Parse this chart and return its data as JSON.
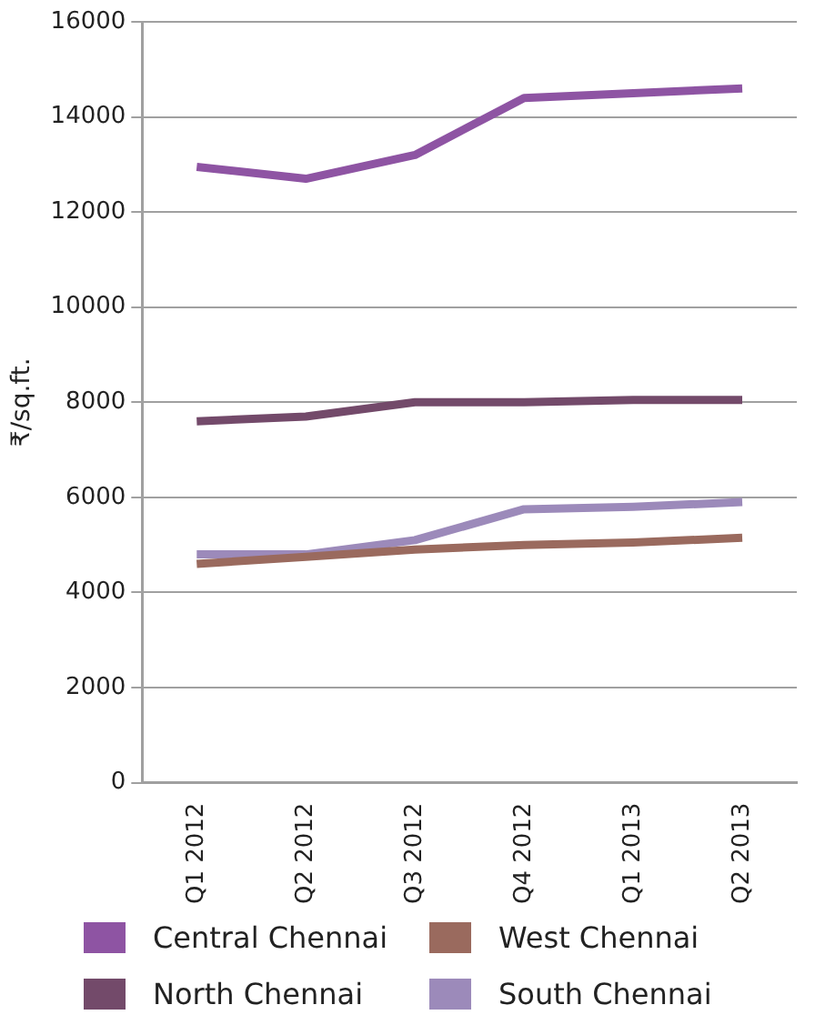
{
  "chart_data": {
    "type": "line",
    "ylabel": "₹/sq.ft.",
    "categories": [
      "Q1 2012",
      "Q2 2012",
      "Q3 2012",
      "Q4 2012",
      "Q1 2013",
      "Q2 2013"
    ],
    "series": [
      {
        "name": "Central Chennai",
        "color": "#8e54a3",
        "values": [
          12950,
          12700,
          13200,
          14400,
          14500,
          14600
        ]
      },
      {
        "name": "West Chennai",
        "color": "#9a6a5e",
        "values": [
          4600,
          4750,
          4900,
          5000,
          5050,
          5150
        ]
      },
      {
        "name": "North Chennai",
        "color": "#734a6a",
        "values": [
          7600,
          7700,
          8000,
          8000,
          8050,
          8050
        ]
      },
      {
        "name": "South Chennai",
        "color": "#9c8aba",
        "values": [
          4800,
          4800,
          5100,
          5750,
          5800,
          5900
        ]
      }
    ],
    "ylim": [
      0,
      16000
    ],
    "yticks": [
      0,
      2000,
      4000,
      6000,
      8000,
      10000,
      12000,
      14000,
      16000
    ],
    "grid": "y",
    "legend": "bottom",
    "marker": "none",
    "line_style": "solid"
  }
}
